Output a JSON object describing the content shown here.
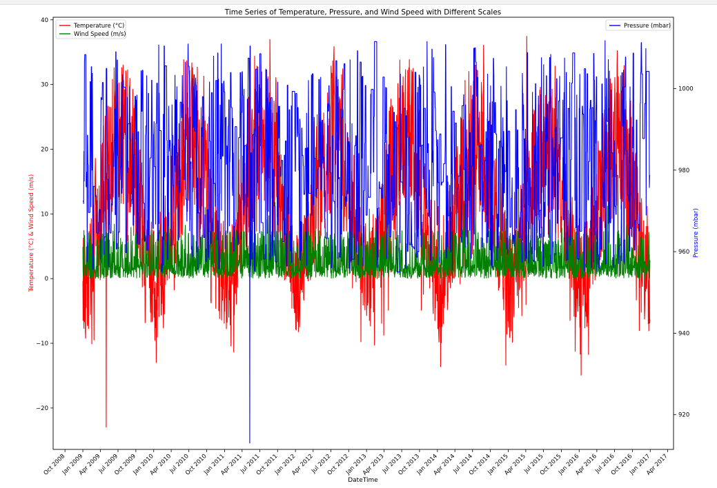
{
  "chart_data": {
    "type": "line",
    "title": "Time Series of Temperature, Pressure, and Wind Speed with Different Scales",
    "xlabel": "DateTime",
    "ylabel_left": "Temperature (°C) & Wind Speed (m/s)",
    "ylabel_right": "Pressure (mbar)",
    "xlim": [
      "2008-08-01",
      "2017-05-01"
    ],
    "ylim_left": [
      -26.4,
      40.4
    ],
    "ylim_right": [
      911.5,
      1017.5
    ],
    "x_ticks": [
      "Oct 2008",
      "Jan 2009",
      "Apr 2009",
      "Jul 2009",
      "Oct 2009",
      "Jan 2010",
      "Apr 2010",
      "Jul 2010",
      "Oct 2010",
      "Jan 2011",
      "Apr 2011",
      "Jul 2011",
      "Oct 2011",
      "Jan 2012",
      "Apr 2012",
      "Jul 2012",
      "Oct 2012",
      "Jan 2013",
      "Apr 2013",
      "Jul 2013",
      "Oct 2013",
      "Jan 2014",
      "Apr 2014",
      "Jul 2014",
      "Oct 2014",
      "Jan 2015",
      "Apr 2015",
      "Jul 2015",
      "Oct 2015",
      "Jan 2016",
      "Apr 2016",
      "Jul 2016",
      "Oct 2016",
      "Jan 2017",
      "Apr 2017"
    ],
    "y_ticks_left": [
      -20,
      -10,
      0,
      10,
      20,
      30,
      40
    ],
    "y_ticks_right": [
      920,
      940,
      960,
      980,
      1000
    ],
    "legend_left": "upper left",
    "legend_right": "upper right",
    "grid": false,
    "data_range": [
      "2009-01-01",
      "2016-12-31"
    ],
    "series": [
      {
        "name": "Temperature (°C)",
        "axis": "left",
        "color": "#ff0000",
        "min": -23.0,
        "max": 37.5,
        "monthly_low": [
          -10,
          -6,
          -2,
          2,
          6,
          9,
          11,
          10,
          6,
          2,
          -2,
          -7
        ],
        "monthly_high": [
          8,
          10,
          15,
          22,
          27,
          31,
          34,
          33,
          28,
          20,
          13,
          9
        ]
      },
      {
        "name": "Wind Speed (m/s)",
        "axis": "left",
        "color": "#008000",
        "min": 0.0,
        "max": 12.0,
        "typical_high": 7.5
      },
      {
        "name": "Pressure (mbar)",
        "axis": "right",
        "color": "#0000ff",
        "min": 913.0,
        "max": 1012.0,
        "typical_low": 955,
        "typical_high": 1004
      }
    ],
    "extremes": [
      {
        "series": "Pressure (mbar)",
        "date": "2011-05-10",
        "value": 913.0
      },
      {
        "series": "Temperature (°C)",
        "date": "2009-05-01",
        "value": -23.0
      },
      {
        "series": "Temperature (°C)",
        "date": "2015-04-05",
        "value": 37.5
      }
    ]
  }
}
